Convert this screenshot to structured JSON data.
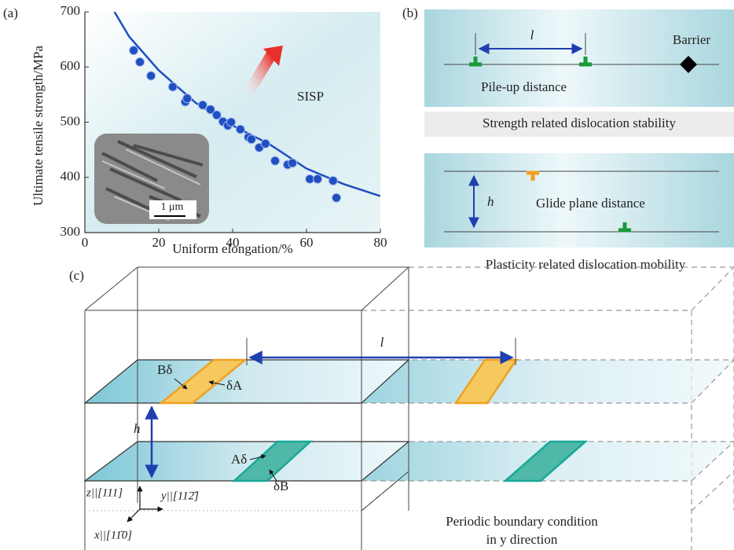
{
  "chart_data": {
    "type": "scatter",
    "panel_label": "(a)",
    "x_label": "Uniform elongation/%",
    "y_label": "Ultimate tensile strength/MPa",
    "annotation": "SISP",
    "inset_scale": "1 μm",
    "x": [
      13.2,
      14.9,
      17.9,
      23.8,
      27.2,
      27.7,
      31.9,
      34,
      35.7,
      37.4,
      38.7,
      39.6,
      42.1,
      44.3,
      45.1,
      47.2,
      48.9,
      51.5,
      54.9,
      56.2,
      60.9,
      63,
      67.2,
      68.1
    ],
    "values": [
      630,
      609,
      584,
      564,
      537,
      543,
      531,
      523,
      513,
      501,
      494,
      500,
      487,
      473,
      469,
      454,
      461,
      430,
      423,
      426,
      397,
      397,
      394,
      363
    ],
    "color": "#1f4fc0",
    "fit_x": [
      8,
      12,
      20,
      30,
      40,
      50,
      60,
      70,
      80
    ],
    "fit_values": [
      700,
      655,
      594,
      535,
      494,
      460,
      416,
      388,
      366
    ],
    "fit_color": "#1f4fc0",
    "xlim": [
      0,
      80
    ],
    "ylim": [
      300,
      700
    ],
    "xticks": [
      0,
      20,
      40,
      60,
      80
    ],
    "yticks": [
      300,
      400,
      500,
      600,
      700
    ]
  },
  "panel_b": {
    "label": "(b)",
    "spacing_symbol": "l",
    "barrier": "Barrier",
    "pileup": "Pile-up distance",
    "strength_caption": "Strength related dislocation stability",
    "height_symbol": "h",
    "glide": "Glide plane distance",
    "plasticity_caption": "Plasticity related dislocation mobility"
  },
  "panel_c": {
    "label": "(c)",
    "spacing_symbol": "l",
    "height_symbol": "h",
    "b_delta": "Bδ",
    "delta_a": "δA",
    "a_delta": "Aδ",
    "delta_b": "δB",
    "z_axis": "z||[111]",
    "y_axis": "y||[112̄]",
    "x_axis": "x||[11̄0]",
    "periodic_1": "Periodic boundary condition",
    "periodic_2": "in y direction"
  }
}
